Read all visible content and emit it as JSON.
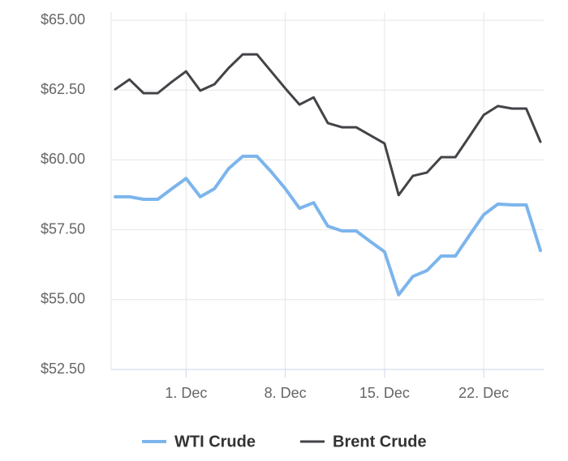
{
  "chart_data": {
    "type": "line",
    "categories": [
      null,
      null,
      null,
      null,
      null,
      "1. Dec",
      null,
      null,
      null,
      null,
      null,
      null,
      "8. Dec",
      null,
      null,
      null,
      null,
      null,
      null,
      "15. Dec",
      null,
      null,
      null,
      null,
      null,
      null,
      "22. Dec",
      null,
      null,
      null,
      null
    ],
    "series": [
      {
        "name": "WTI Crude",
        "color": "#7cb5ec",
        "values": [
          58.68,
          58.68,
          58.59,
          58.59,
          58.97,
          59.34,
          58.68,
          58.97,
          59.69,
          60.13,
          60.13,
          59.58,
          58.97,
          58.27,
          58.47,
          57.63,
          57.46,
          57.46,
          57.08,
          56.71,
          55.17,
          55.83,
          56.04,
          56.56,
          56.56,
          57.31,
          58.04,
          58.42,
          58.39,
          58.39,
          56.76
        ]
      },
      {
        "name": "Brent Crude",
        "color": "#434348",
        "values": [
          62.53,
          62.88,
          62.39,
          62.39,
          62.8,
          63.17,
          62.48,
          62.71,
          63.29,
          63.78,
          63.78,
          63.17,
          62.56,
          61.98,
          62.24,
          61.32,
          61.17,
          61.17,
          60.88,
          60.59,
          58.74,
          59.43,
          59.55,
          60.1,
          60.1,
          60.85,
          61.61,
          61.93,
          61.84,
          61.84,
          60.65
        ]
      }
    ],
    "ylim": [
      52.5,
      65
    ],
    "yticks": [
      {
        "value": 52.5,
        "label": "$52.50"
      },
      {
        "value": 55,
        "label": "$55.00"
      },
      {
        "value": 57.5,
        "label": "$57.50"
      },
      {
        "value": 60,
        "label": "$60.00"
      },
      {
        "value": 62.5,
        "label": "$62.50"
      },
      {
        "value": 65,
        "label": "$65.00"
      }
    ],
    "grid": true,
    "legend": "bottom"
  }
}
